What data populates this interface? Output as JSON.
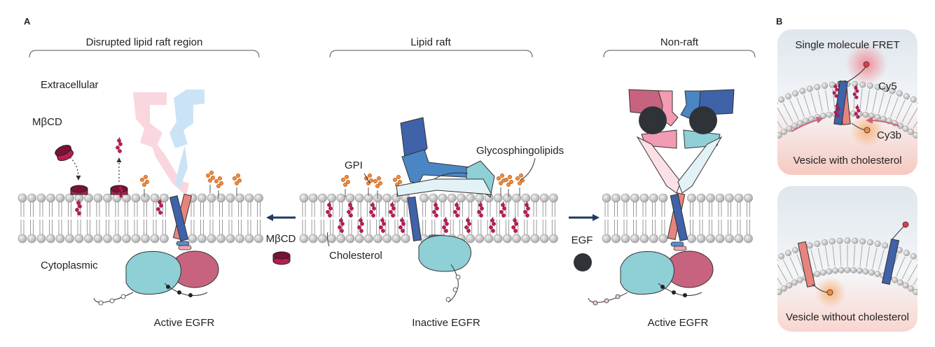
{
  "panels": {
    "a": {
      "letter": "A",
      "regions": {
        "disrupted": "Disrupted lipid raft region",
        "raft": "Lipid raft",
        "nonraft": "Non-raft"
      },
      "labels": {
        "extracellular": "Extracellular",
        "cytoplasmic": "Cytoplasmic",
        "mbcd_top": "MβCD",
        "mbcd_arrow": "MβCD",
        "gpi": "GPI",
        "glycosphingolipids": "Glycosphingolipids",
        "cholesterol": "Cholesterol",
        "egf": "EGF"
      },
      "captions": {
        "left": "Active EGFR",
        "center": "Inactive EGFR",
        "right": "Active EGFR"
      }
    },
    "b": {
      "letter": "B",
      "top": {
        "title": "Single molecule FRET",
        "cy5": "Cy5",
        "cy3b": "Cy3b",
        "caption": "Vesicle with cholesterol"
      },
      "bottom": {
        "caption": "Vesicle without cholesterol"
      }
    }
  },
  "colors": {
    "navy_arrow": "#1f3b5c",
    "egfr_blue": "#3f62a8",
    "egfr_midblue": "#4a86c4",
    "egfr_pink": "#e8847c",
    "egfr_rose": "#c8637f",
    "kinase_teal": "#8fcfd6",
    "cholesterol": "#c0185a",
    "gpi_orange": "#f08a3a",
    "lipid_head": "#c9c9c9",
    "egf_dark": "#2f3338"
  }
}
